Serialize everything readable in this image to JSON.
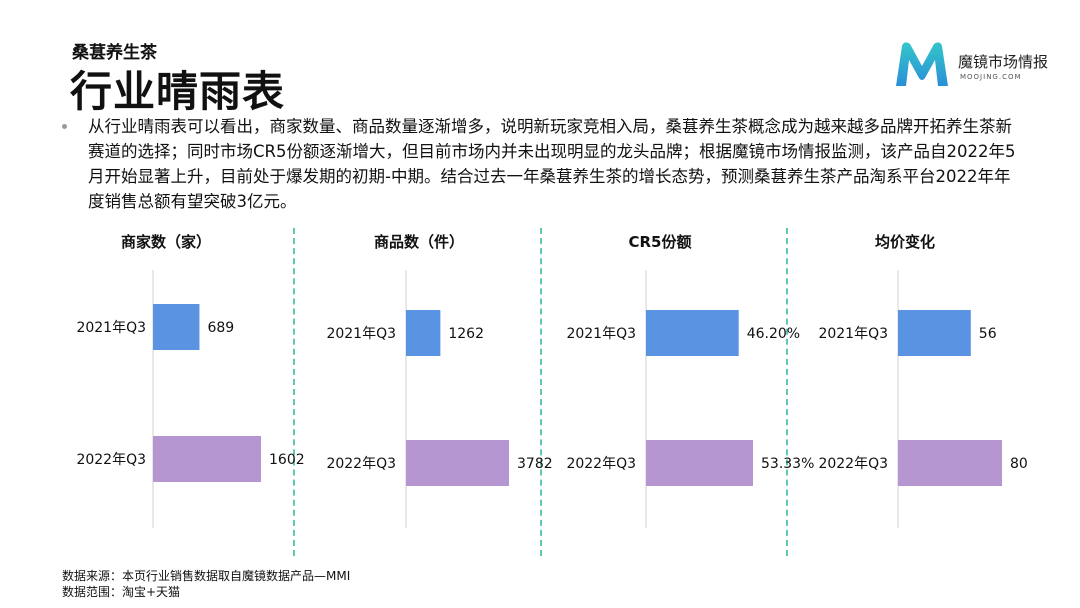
{
  "header": {
    "subtitle": "桑葚养生茶",
    "title": "行业晴雨表"
  },
  "logo": {
    "name": "魔镜市场情报",
    "url": "MOOJING.COM",
    "colors": [
      "#2a8fd8",
      "#34c6c8"
    ]
  },
  "summary": "从行业晴雨表可以看出，商家数量、商品数量逐渐增多，说明新玩家竞相入局，桑葚养生茶概念成为越来越多品牌开拓养生茶新赛道的选择；同时市场CR5份额逐渐增大，但目前市场内并未出现明显的龙头品牌；根据魔镜市场情报监测，该产品自2022年5月开始显著上升，目前处于爆发期的初期-中期。结合过去一年桑葚养生茶的增长态势，预测桑葚养生茶产品淘系平台2022年年度销售总额有望突破3亿元。",
  "colors": {
    "q2021": "#5b93e3",
    "q2022": "#b596d0",
    "divider": "#5fc8b4"
  },
  "chart_data": [
    {
      "type": "bar",
      "title": "商家数（家）",
      "categories": [
        "2021年Q3",
        "2022年Q3"
      ],
      "values": [
        689,
        1602
      ],
      "labels": [
        "689",
        "1602"
      ]
    },
    {
      "type": "bar",
      "title": "商品数（件）",
      "categories": [
        "2021年Q3",
        "2022年Q3"
      ],
      "values": [
        1262,
        3782
      ],
      "labels": [
        "1262",
        "3782"
      ]
    },
    {
      "type": "bar",
      "title": "CR5份额",
      "categories": [
        "2021年Q3",
        "2022年Q3"
      ],
      "values": [
        46.2,
        53.33
      ],
      "labels": [
        "46.20%",
        "53.33%"
      ]
    },
    {
      "type": "bar",
      "title": "均价变化",
      "categories": [
        "2021年Q3",
        "2022年Q3"
      ],
      "values": [
        56,
        80
      ],
      "labels": [
        "56",
        "80"
      ]
    }
  ],
  "footer": {
    "source": "数据来源：本页行业销售数据取自魔镜数据产品—MMI",
    "scope": "数据范围：淘宝+天猫"
  }
}
